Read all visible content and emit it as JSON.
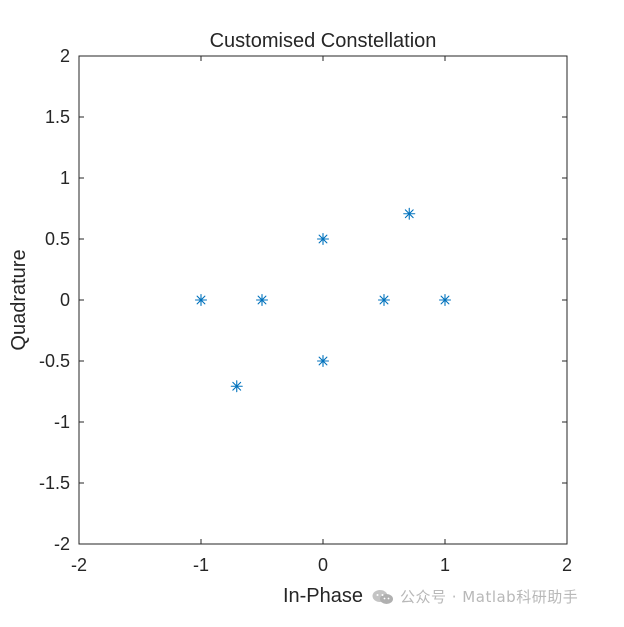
{
  "chart_data": {
    "type": "scatter",
    "title": "Customised Constellation",
    "xlabel": "In-Phase",
    "ylabel": "Quadrature",
    "xlim": [
      -2,
      2
    ],
    "ylim": [
      -2,
      2
    ],
    "xticks": [
      -2,
      -1,
      0,
      1,
      2
    ],
    "yticks": [
      -2,
      -1.5,
      -1,
      -0.5,
      0,
      0.5,
      1,
      1.5,
      2
    ],
    "xtick_labels": [
      "-2",
      "-1",
      "0",
      "1",
      "2"
    ],
    "ytick_labels": [
      "-2",
      "-1.5",
      "-1",
      "-0.5",
      "0",
      "0.5",
      "1",
      "1.5",
      "2"
    ],
    "grid": false,
    "marker": "asterisk",
    "marker_color": "#0072BD",
    "series": [
      {
        "points": [
          {
            "x": -1,
            "y": 0
          },
          {
            "x": -0.5,
            "y": 0
          },
          {
            "x": -0.707,
            "y": -0.707
          },
          {
            "x": 0,
            "y": 0.5
          },
          {
            "x": 0,
            "y": -0.5
          },
          {
            "x": 0.5,
            "y": 0
          },
          {
            "x": 1,
            "y": 0
          },
          {
            "x": 0.707,
            "y": 0.707
          }
        ]
      }
    ]
  },
  "watermark": {
    "text": "公众号 · Matlab科研助手",
    "icon": "wechat-icon"
  }
}
